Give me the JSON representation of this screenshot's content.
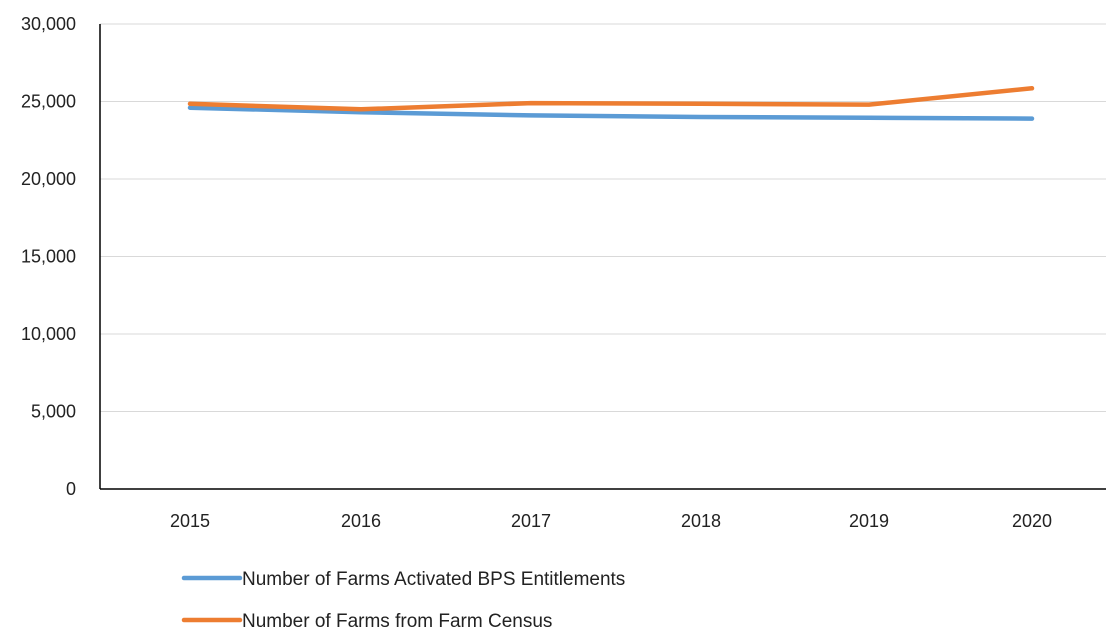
{
  "chart_data": {
    "type": "line",
    "categories": [
      "2015",
      "2016",
      "2017",
      "2018",
      "2019",
      "2020"
    ],
    "series": [
      {
        "name": "Number of Farms Activated BPS Entitlements",
        "color": "#5B9BD5",
        "values": [
          24600,
          24300,
          24100,
          24000,
          23950,
          23900
        ]
      },
      {
        "name": "Number of Farms from Farm Census",
        "color": "#ED7D31",
        "values": [
          24850,
          24500,
          24900,
          24850,
          24800,
          25850
        ]
      }
    ],
    "ylim": [
      0,
      30000
    ],
    "yticks": [
      0,
      5000,
      10000,
      15000,
      20000,
      25000,
      30000
    ],
    "ytick_labels": [
      "0",
      "5,000",
      "10,000",
      "15,000",
      "20,000",
      "25,000",
      "30,000"
    ],
    "grid": "horizontal",
    "legend_position": "bottom",
    "title": "",
    "xlabel": "",
    "ylabel": ""
  }
}
